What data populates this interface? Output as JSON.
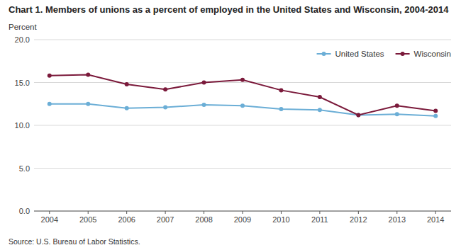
{
  "chart_data": {
    "type": "line",
    "title": "Chart 1. Members of unions as a percent of employed in the United States and Wisconsin, 2004-2014",
    "y_label": "Percent",
    "annotations": [
      "Source: U.S. Bureau of Labor Statistics."
    ],
    "x": [
      2004,
      2005,
      2006,
      2007,
      2008,
      2009,
      2010,
      2011,
      2012,
      2013,
      2014
    ],
    "xlim": [
      2003.6,
      2014.4
    ],
    "xticks": [
      2004,
      2005,
      2006,
      2007,
      2008,
      2009,
      2010,
      2011,
      2012,
      2013,
      2014
    ],
    "ylim": [
      0,
      20.0
    ],
    "yticks": [
      {
        "value": 0.0,
        "label": "0.0"
      },
      {
        "value": 5.0,
        "label": "5.0"
      },
      {
        "value": 10.0,
        "label": "10.0"
      },
      {
        "value": 15.0,
        "label": "15.0"
      },
      {
        "value": 20.0,
        "label": "20.0"
      }
    ],
    "grid": true,
    "legend": "upper right",
    "series": [
      {
        "name": "United States",
        "color": "#6baed6",
        "marker": "circle",
        "line_style": "solid",
        "values": [
          12.5,
          12.5,
          12.0,
          12.1,
          12.4,
          12.3,
          11.9,
          11.8,
          11.2,
          11.3,
          11.1
        ]
      },
      {
        "name": "Wisconsin",
        "color": "#7b1a3b",
        "marker": "circle",
        "line_style": "solid",
        "values": [
          15.8,
          15.9,
          14.8,
          14.2,
          15.0,
          15.3,
          14.1,
          13.3,
          11.2,
          12.3,
          11.7
        ]
      }
    ]
  }
}
